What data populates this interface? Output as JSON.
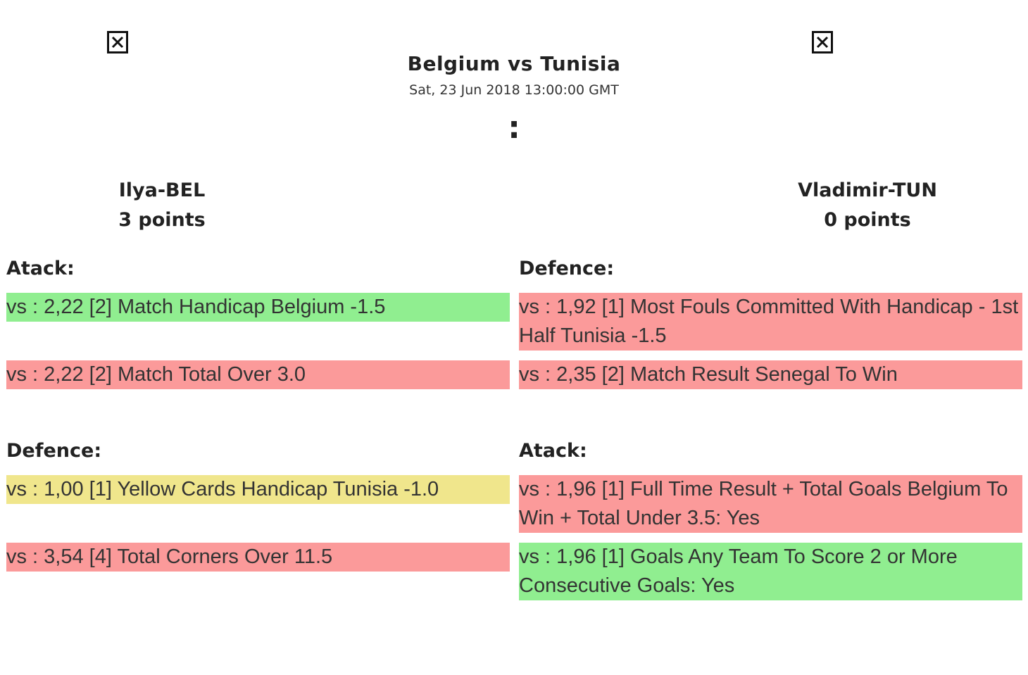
{
  "match": {
    "title": "Belgium vs Tunisia",
    "date": "Sat, 23 Jun 2018 13:00:00 GMT",
    "score_separator": ":"
  },
  "players": {
    "left": {
      "name": "Ilya-BEL",
      "points": "3 points",
      "image_icon": "broken-image-icon"
    },
    "right": {
      "name": "Vladimir-TUN",
      "points": "0 points",
      "image_icon": "broken-image-icon"
    }
  },
  "sections": {
    "left_top": {
      "title": "Atack:",
      "bets": [
        {
          "text": "vs : 2,22 [2] Match Handicap Belgium -1.5",
          "status": "green"
        },
        {
          "text": "vs : 2,22 [2] Match Total Over 3.0",
          "status": "red"
        }
      ]
    },
    "right_top": {
      "title": "Defence:",
      "bets": [
        {
          "text": "vs : 1,92 [1] Most Fouls Committed With Handicap - 1st Half Tunisia -1.5",
          "status": "red"
        },
        {
          "text": "vs : 2,35 [2] Match Result Senegal To Win",
          "status": "red"
        }
      ]
    },
    "left_bottom": {
      "title": "Defence:",
      "bets": [
        {
          "text": "vs : 1,00 [1] Yellow Cards Handicap Tunisia -1.0",
          "status": "yellow"
        },
        {
          "text": "vs : 3,54 [4] Total Corners Over 11.5",
          "status": "red"
        }
      ]
    },
    "right_bottom": {
      "title": "Atack:",
      "bets": [
        {
          "text": "vs : 1,96 [1] Full Time Result + Total Goals Belgium To Win + Total Under 3.5: Yes",
          "status": "red"
        },
        {
          "text": "vs : 1,96 [1] Goals Any Team To Score 2 or More Consecutive Goals: Yes",
          "status": "green"
        }
      ]
    }
  },
  "colors": {
    "win": "#90ee90",
    "loss": "#fb9a9a",
    "void": "#f0e68c"
  }
}
